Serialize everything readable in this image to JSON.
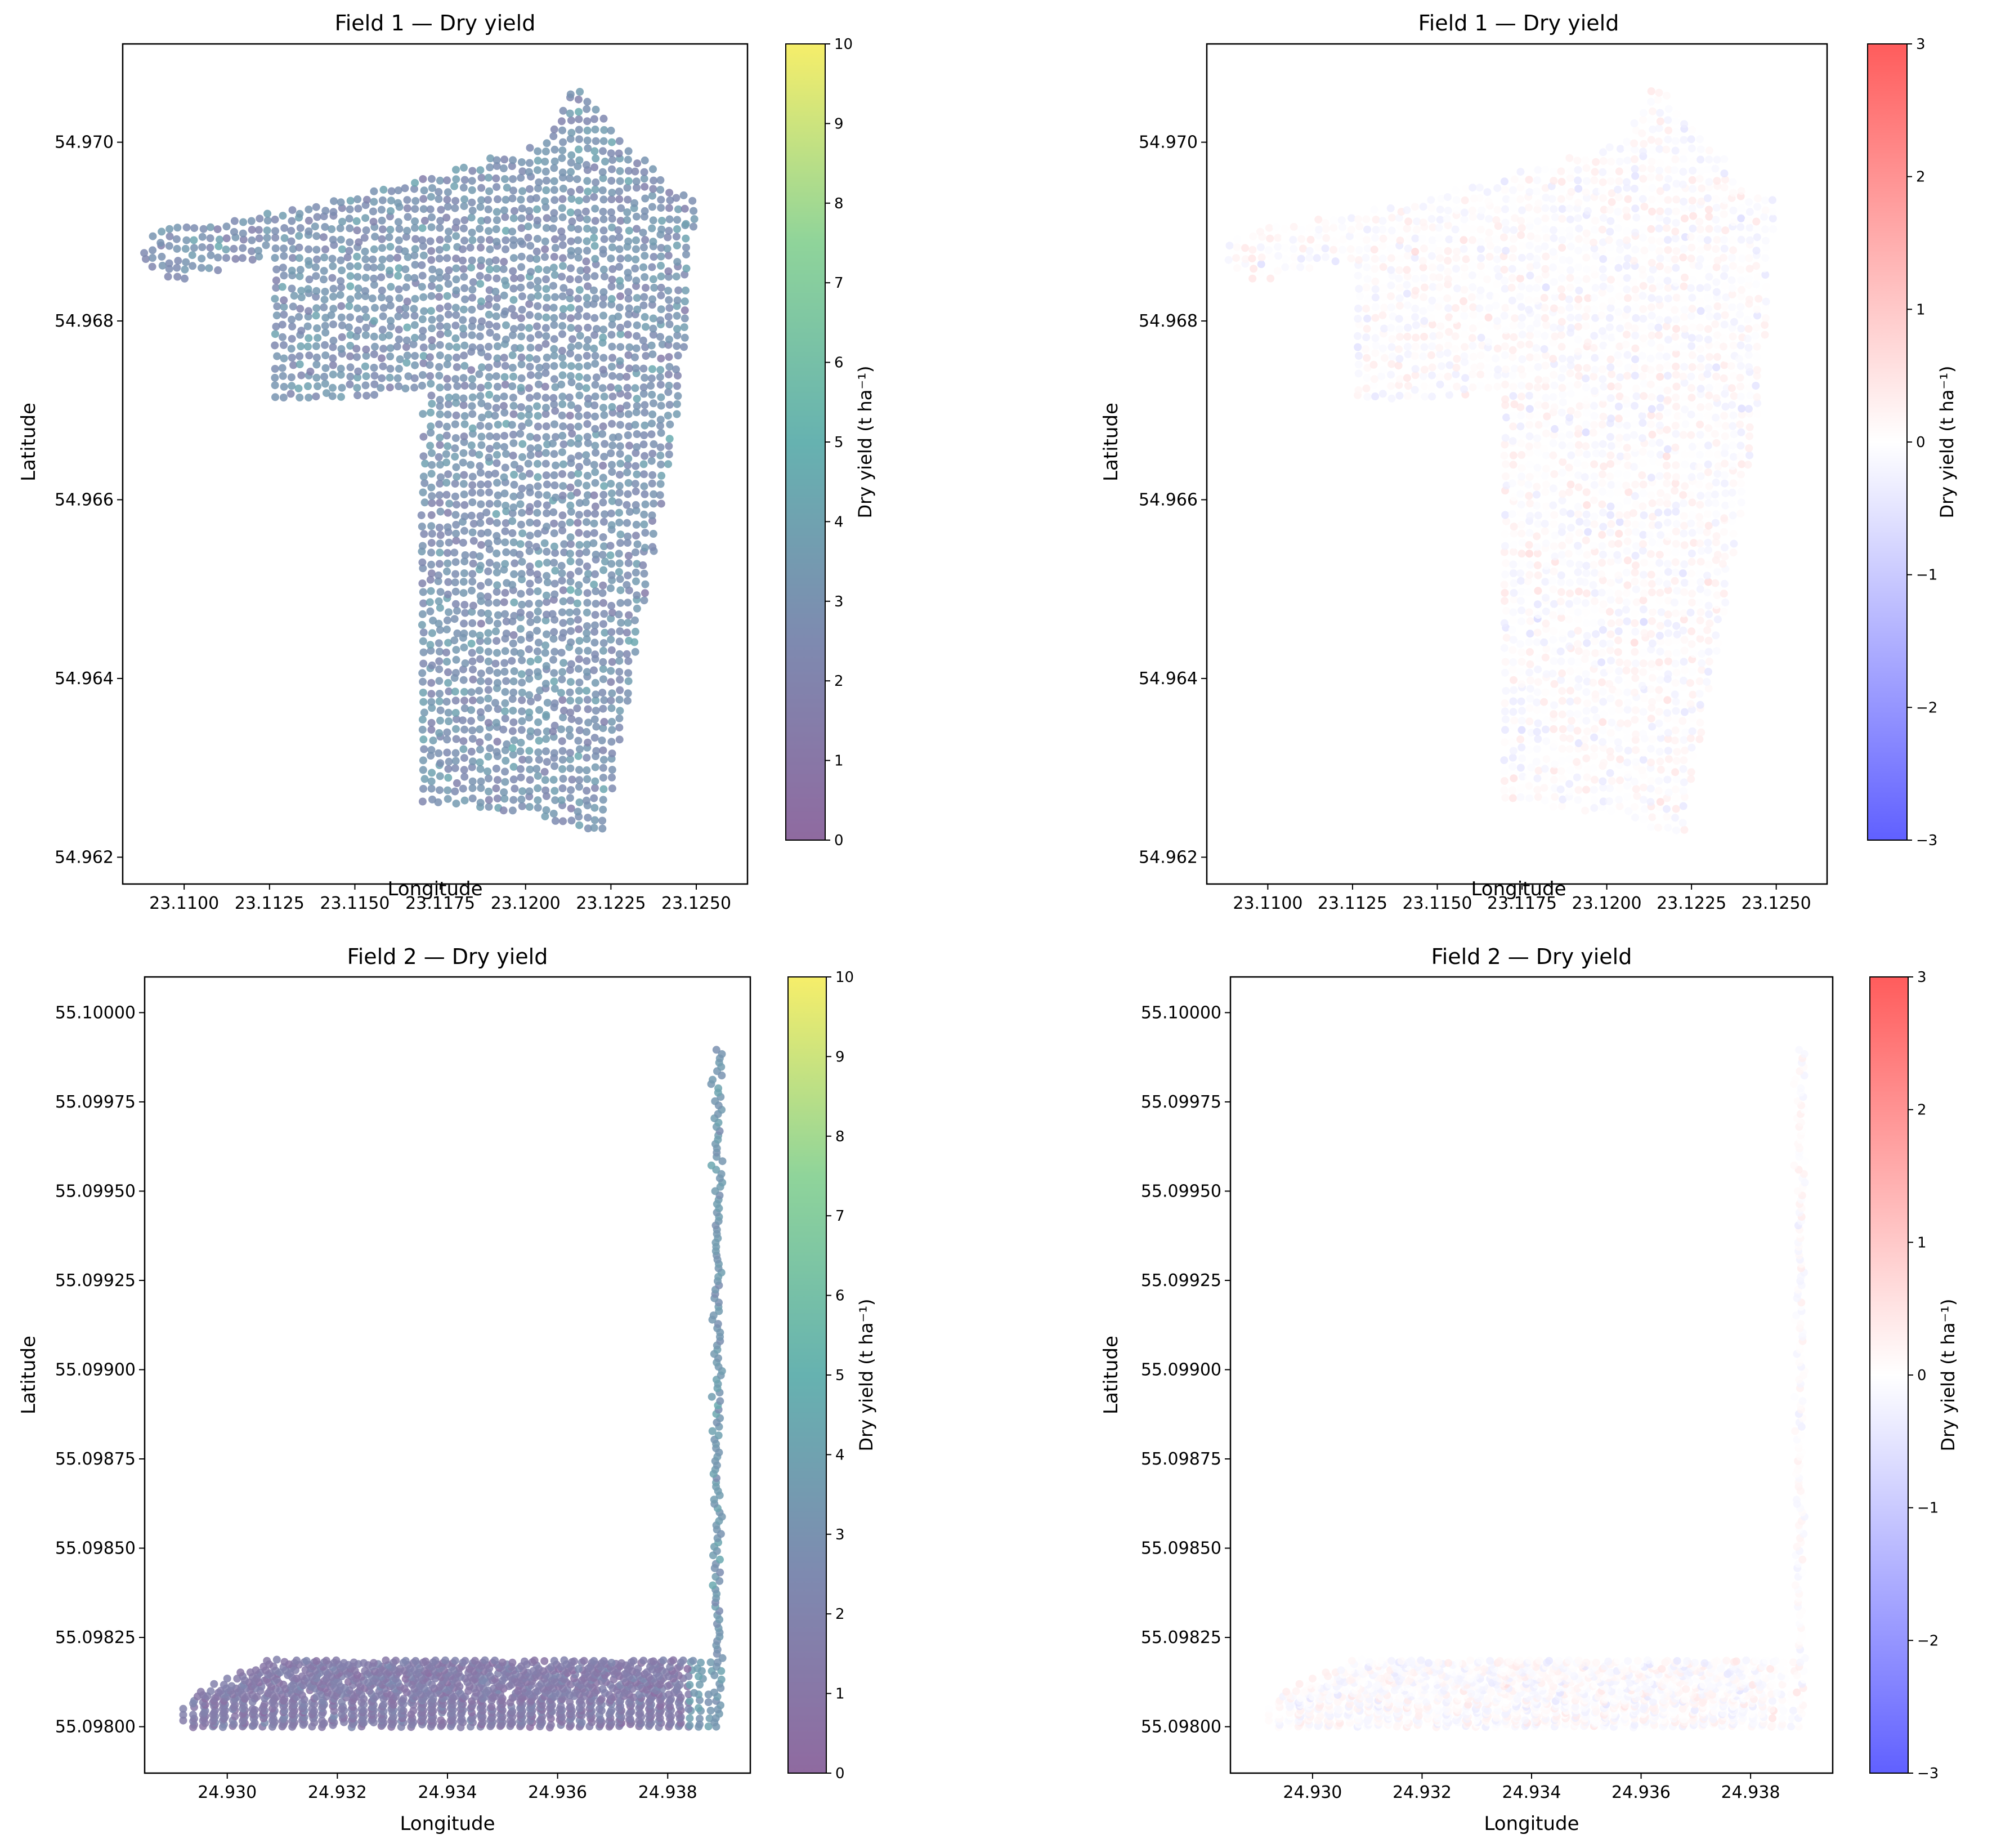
{
  "chart_data": [
    {
      "type": "scatter",
      "title": "Field 1 — Dry yield",
      "xlabel": "Longitude",
      "ylabel": "Latitude",
      "xlim": [
        23.1082,
        23.1265
      ],
      "ylim": [
        54.9617,
        54.9711
      ],
      "xticks": [
        23.11,
        23.1125,
        23.115,
        23.1175,
        23.12,
        23.1225,
        23.125
      ],
      "xtick_labels": [
        "23.1100",
        "23.1125",
        "23.1150",
        "23.1175",
        "23.1200",
        "23.1225",
        "23.1250"
      ],
      "yticks": [
        54.962,
        54.964,
        54.966,
        54.968,
        54.97
      ],
      "ytick_labels": [
        "54.962",
        "54.964",
        "54.966",
        "54.968",
        "54.970"
      ],
      "colormap": "viridis",
      "colorbar": {
        "label": "Dry yield (t ha⁻¹)",
        "min": 0,
        "max": 10,
        "ticks": [
          0,
          1,
          2,
          3,
          4,
          5,
          6,
          7,
          8,
          9,
          10
        ]
      },
      "grid": false,
      "field_outline": [
        [
          23.109,
          54.969
        ],
        [
          23.114,
          54.9693
        ],
        [
          23.1205,
          54.97
        ],
        [
          23.1214,
          54.9707
        ],
        [
          23.1242,
          54.9695
        ],
        [
          23.125,
          54.9694
        ],
        [
          23.1245,
          54.967
        ],
        [
          23.1223,
          54.9622
        ],
        [
          23.12,
          54.9625
        ],
        [
          23.1168,
          54.9626
        ],
        [
          23.117,
          54.9672
        ],
        [
          23.1125,
          54.9671
        ],
        [
          23.1125,
          54.9687
        ],
        [
          23.1095,
          54.9684
        ],
        [
          23.1086,
          54.9687
        ]
      ],
      "series": [
        {
          "mean_value": 3.0,
          "spread": 1.4
        }
      ]
    },
    {
      "type": "scatter",
      "title": "Field 1 — Dry yield",
      "xlabel": "Longitude",
      "ylabel": "Latitude",
      "xlim": [
        23.1082,
        23.1265
      ],
      "ylim": [
        54.9617,
        54.9711
      ],
      "xticks": [
        23.11,
        23.1125,
        23.115,
        23.1175,
        23.12,
        23.1225,
        23.125
      ],
      "xtick_labels": [
        "23.1100",
        "23.1125",
        "23.1150",
        "23.1175",
        "23.1200",
        "23.1225",
        "23.1250"
      ],
      "yticks": [
        54.962,
        54.964,
        54.966,
        54.968,
        54.97
      ],
      "ytick_labels": [
        "54.962",
        "54.964",
        "54.966",
        "54.968",
        "54.970"
      ],
      "colormap": "bwr",
      "colorbar": {
        "label": "Dry yield (t ha⁻¹)",
        "min": -3,
        "max": 3,
        "ticks": [
          -3,
          -2,
          -1,
          0,
          1,
          2,
          3
        ],
        "tick_labels": [
          "−3",
          "−2",
          "−1",
          "0",
          "1",
          "2",
          "3"
        ]
      },
      "grid": false,
      "field_outline": [
        [
          23.109,
          54.969
        ],
        [
          23.114,
          54.9693
        ],
        [
          23.1205,
          54.97
        ],
        [
          23.1214,
          54.9707
        ],
        [
          23.1242,
          54.9695
        ],
        [
          23.125,
          54.9694
        ],
        [
          23.1245,
          54.967
        ],
        [
          23.1223,
          54.9622
        ],
        [
          23.12,
          54.9625
        ],
        [
          23.1168,
          54.9626
        ],
        [
          23.117,
          54.9672
        ],
        [
          23.1125,
          54.9671
        ],
        [
          23.1125,
          54.9687
        ],
        [
          23.1095,
          54.9684
        ],
        [
          23.1086,
          54.9687
        ]
      ],
      "series": [
        {
          "mean_value": 0.0,
          "spread": 0.6
        }
      ]
    },
    {
      "type": "scatter",
      "title": "Field 2 — Dry yield",
      "xlabel": "Longitude",
      "ylabel": "Latitude",
      "xlim": [
        24.9285,
        24.9395
      ],
      "ylim": [
        55.09787,
        55.1001
      ],
      "xticks": [
        24.93,
        24.932,
        24.934,
        24.936,
        24.938
      ],
      "xtick_labels": [
        "24.930",
        "24.932",
        "24.934",
        "24.936",
        "24.938"
      ],
      "yticks": [
        55.098,
        55.09825,
        55.0985,
        55.09875,
        55.099,
        55.09925,
        55.0995,
        55.09975,
        55.1
      ],
      "ytick_labels": [
        "55.09800",
        "55.09825",
        "55.09850",
        "55.09875",
        "55.09900",
        "55.09925",
        "55.09950",
        "55.09975",
        "55.10000"
      ],
      "colormap": "viridis",
      "colorbar": {
        "label": "Dry yield (t ha⁻¹)",
        "min": 0,
        "max": 10,
        "ticks": [
          0,
          1,
          2,
          3,
          4,
          5,
          6,
          7,
          8,
          9,
          10
        ]
      },
      "grid": false,
      "series": [
        {
          "mean_value": 1.5,
          "spread": 1.0
        }
      ]
    },
    {
      "type": "scatter",
      "title": "Field 2 — Dry yield",
      "xlabel": "Longitude",
      "ylabel": "Latitude",
      "xlim": [
        24.9285,
        24.9395
      ],
      "ylim": [
        55.09787,
        55.1001
      ],
      "xticks": [
        24.93,
        24.932,
        24.934,
        24.936,
        24.938
      ],
      "xtick_labels": [
        "24.930",
        "24.932",
        "24.934",
        "24.936",
        "24.938"
      ],
      "yticks": [
        55.098,
        55.09825,
        55.0985,
        55.09875,
        55.099,
        55.09925,
        55.0995,
        55.09975,
        55.1
      ],
      "ytick_labels": [
        "55.09800",
        "55.09825",
        "55.09850",
        "55.09875",
        "55.09900",
        "55.09925",
        "55.09950",
        "55.09975",
        "55.10000"
      ],
      "colormap": "bwr",
      "colorbar": {
        "label": "Dry yield (t ha⁻¹)",
        "min": -3,
        "max": 3,
        "ticks": [
          -3,
          -2,
          -1,
          0,
          1,
          2,
          3
        ],
        "tick_labels": [
          "−3",
          "−2",
          "−1",
          "0",
          "1",
          "2",
          "3"
        ]
      },
      "grid": false,
      "series": [
        {
          "mean_value": 0.0,
          "spread": 0.5
        }
      ]
    }
  ]
}
